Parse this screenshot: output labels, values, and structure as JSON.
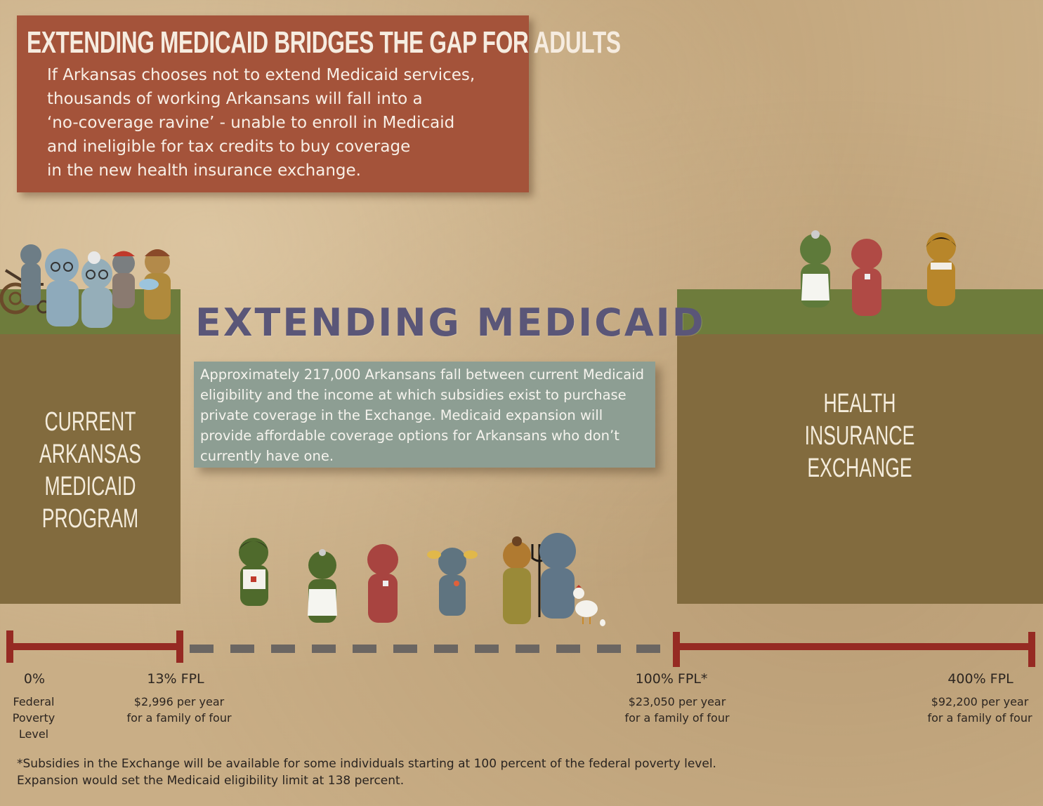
{
  "header": {
    "title": "EXTENDING MEDICAID BRIDGES THE GAP FOR ADULTS",
    "body": "If Arkansas chooses not to extend Medicaid services,\nthousands of working Arkansans will fall into a\n‘no-coverage ravine’ - unable to enroll in Medicaid\nand ineligible for tax credits to buy coverage\nin the new health insurance exchange."
  },
  "left_cliff": {
    "label": "CURRENT ARKANSAS\nMEDICAID PROGRAM"
  },
  "right_cliff": {
    "label": "HEALTH\nINSURANCE\nEXCHANGE"
  },
  "middle": {
    "title": "EXTENDING MEDICAID",
    "info": "Approximately 217,000 Arkansans fall between current Medicaid\neligibility and the income at which subsidies exist to purchase\nprivate coverage in the Exchange. Medicaid expansion will\nprovide affordable coverage options for Arkansans who don’t\ncurrently have one."
  },
  "scale": {
    "ticks": [
      {
        "label": "0%",
        "desc": "Federal\nPoverty\nLevel"
      },
      {
        "label": "13% FPL",
        "desc": "$2,996 per year\nfor a family of four"
      },
      {
        "label": "100% FPL*",
        "desc": "$23,050 per year\nfor a family of four"
      },
      {
        "label": "400% FPL",
        "desc": "$92,200 per year\nfor a family of four"
      }
    ]
  },
  "footnote": "*Subsidies in the Exchange will be available for some individuals starting at 100 percent of the federal poverty level.\n  Expansion would set the Medicaid eligibility limit at 138 percent.",
  "colors": {
    "background": "#c9ae86",
    "header_box": "#a4533a",
    "grass": "#6e7c3c",
    "cliff": "#826b3e",
    "info_box": "#8d9e93",
    "title": "#5a5678",
    "bar_red": "#962a23",
    "bar_gray": "#6b6662"
  },
  "icons": {
    "wheelchair": "wheelchair-icon",
    "pitchfork": "pitchfork-icon",
    "chicken": "chicken-icon"
  }
}
